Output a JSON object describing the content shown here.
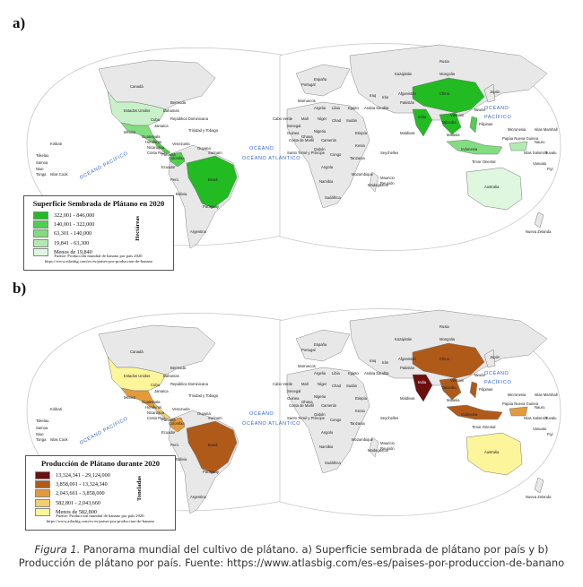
{
  "panel_a": {
    "letter": "a)",
    "legend": {
      "title": "Superficie Sembrada de Plátano en 2020",
      "unit": "Hectáreas",
      "items": [
        {
          "range": "322,001 - 846,000",
          "color": "#22bb22"
        },
        {
          "range": "140,001 - 322,000",
          "color": "#4ecf4e"
        },
        {
          "range": "63,301 - 140,000",
          "color": "#80dd80"
        },
        {
          "range": "19,841 - 63,300",
          "color": "#b2ebb2"
        },
        {
          "range": "Menos de 19,840",
          "color": "#def7de"
        }
      ],
      "source_1": "Fuente: Producción mundial de banano por país 2020.",
      "source_2": "https://www.atlasbig.com/es-es/paises-por-produccion-de-banano"
    }
  },
  "panel_b": {
    "letter": "b)",
    "legend": {
      "title": "Producción de Plátano durante 2020",
      "unit": "Toneladas",
      "items": [
        {
          "range": "13,324,341 - 29,124,000",
          "color": "#6b0f0f"
        },
        {
          "range": "3,858,001 - 13,324,340",
          "color": "#b05a1a"
        },
        {
          "range": "2,043,661 - 3,858,000",
          "color": "#e39a3a"
        },
        {
          "range": "582,801 - 2,043,660",
          "color": "#f4cd6e"
        },
        {
          "range": "Menos de 582,800",
          "color": "#fdf59a"
        }
      ],
      "source_1": "Fuente: Producción mundial de banano por país 2020.",
      "source_2": "https://www.atlasbig.com/es-es/paises-por-produccion-de-banano"
    }
  },
  "map_labels": {
    "oceano_pacifico": "OCÉANO PACÍFICO",
    "oceano_atlantico": "OCÉANO ATLÁNTICO",
    "oceano": "OCÉANO",
    "pacifico": "PACÍFICO",
    "estados_unidos": "Estados Unidos",
    "canada": "Canadá",
    "mexico": "México",
    "brasil": "Brasil",
    "peru": "Perú",
    "bolivia": "Bolivia",
    "paraguay": "Paraguay",
    "argentina": "Argentina",
    "colombia": "Colombia",
    "venezuela": "Venezuela",
    "ecuador": "Ecuador",
    "guatemala": "Guatemala",
    "honduras": "Honduras",
    "nicaragua": "Nicaragua",
    "costa_rica": "Costa Rica",
    "panama": "Panamá",
    "cuba": "Cuba",
    "bahamas": "Bahamas",
    "bermuda": "Bermuda",
    "rep_dominicana": "República Dominicana",
    "jamaica": "Jamaica",
    "trinidad": "Trinidad y Tobago",
    "guyana": "Guyana",
    "surinam": "Surinam",
    "kiribati": "Kiribati",
    "tokelau": "Tokelau",
    "samoa": "Samoa",
    "tonga": "Tonga",
    "niue": "Niue",
    "islas_cook": "Islas Cook",
    "portugal": "Portugal",
    "espana": "España",
    "marruecos": "Marruecos",
    "argelia": "Argelia",
    "libia": "Libia",
    "egipto": "Egipto",
    "mali": "Malí",
    "niger": "Níger",
    "chad": "Chad",
    "sudan": "Sudán",
    "nigeria": "Nigeria",
    "etiopia": "Etiopía",
    "kenia": "Kenia",
    "tanzania": "Tanzania",
    "congo": "Congo",
    "angola": "Angola",
    "namibia": "Namibia",
    "sudafrica": "Sudáfrica",
    "madagascar": "Madagascar",
    "mozambique": "Mozambique",
    "cabo_verde": "Cabo Verde",
    "senegal": "Senegal",
    "guinea": "Guinea",
    "costa_marfil": "Costa de Marfil",
    "ghana": "Ghana",
    "camerun": "Camerún",
    "gabon": "Gabón",
    "santo_tome": "Santo Tomé y Príncipe",
    "rusia": "Rusia",
    "china": "China",
    "india": "India",
    "iran": "Irán",
    "iraq": "Iraq",
    "arabia": "Arabia Saudita",
    "mongolia": "Mongolia",
    "kazajistan": "Kazajistán",
    "afganistan": "Afganistán",
    "pakistan": "Pakistán",
    "japon": "Japón",
    "filipinas": "Filipinas",
    "taiwan": "Taiwán",
    "vietnam": "Vietnam",
    "tailandia": "Tailandia",
    "malasia": "Malasia",
    "indonesia": "Indonesia",
    "maldivas": "Maldivas",
    "papua": "Papúa Nueva Guinea",
    "timor": "Timor Oriental",
    "islas_salomon": "Islas Salomón",
    "micronesia": "Micronesia",
    "marshall": "Islas Marshall",
    "australia": "Australia",
    "nueva_zelanda": "Nueva Zelanda",
    "vanuatu": "Vanuatu",
    "fiji": "Fiyi",
    "nauru": "Nauru",
    "tuvalu": "Tuvalu",
    "seychelles": "Seychelles",
    "mauricio": "Mauricio",
    "reunion": "Reunión"
  },
  "caption": {
    "lead": "Figura 1.",
    "text": " Panorama mundial del cultivo de plátano. a) Superficie sembrada de plátano por país y b) Producción de plátano por país. Fuente: https://www.atlasbig.com/es-es/paises-por-produccion-de-banano"
  }
}
